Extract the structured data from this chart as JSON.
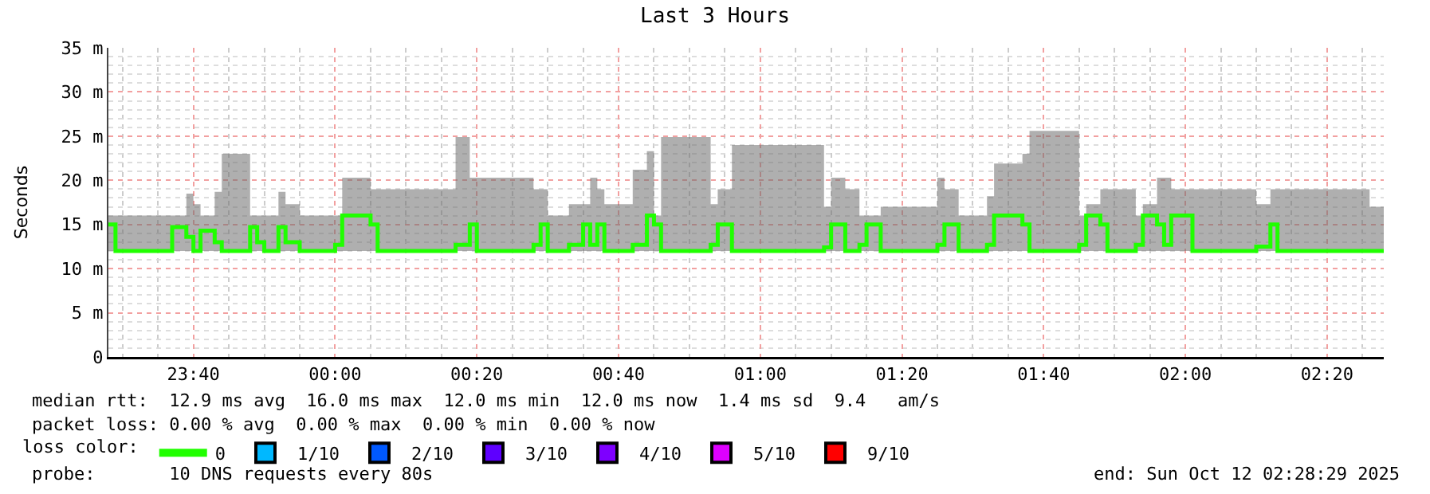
{
  "chart_data": {
    "type": "step",
    "title": "Last 3 Hours",
    "ylabel": "Seconds",
    "legend_title": "loss color:",
    "x": [
      "2025-10-11T23:28",
      "2025-10-11T23:29",
      "2025-10-11T23:37",
      "2025-10-11T23:39",
      "2025-10-11T23:40",
      "2025-10-11T23:41",
      "2025-10-11T23:43",
      "2025-10-11T23:44",
      "2025-10-11T23:48",
      "2025-10-11T23:49",
      "2025-10-11T23:50",
      "2025-10-11T23:52",
      "2025-10-11T23:53",
      "2025-10-11T23:55",
      "2025-10-12T00:00",
      "2025-10-12T00:01",
      "2025-10-12T00:05",
      "2025-10-12T00:06",
      "2025-10-12T00:17",
      "2025-10-12T00:19",
      "2025-10-12T00:20",
      "2025-10-12T00:28",
      "2025-10-12T00:29",
      "2025-10-12T00:30",
      "2025-10-12T00:33",
      "2025-10-12T00:35",
      "2025-10-12T00:36",
      "2025-10-12T00:37",
      "2025-10-12T00:38",
      "2025-10-12T00:42",
      "2025-10-12T00:44",
      "2025-10-12T00:45",
      "2025-10-12T00:46",
      "2025-10-12T00:53",
      "2025-10-12T00:54",
      "2025-10-12T00:56",
      "2025-10-12T01:09",
      "2025-10-12T01:10",
      "2025-10-12T01:12",
      "2025-10-12T01:14",
      "2025-10-12T01:15",
      "2025-10-12T01:17",
      "2025-10-12T01:25",
      "2025-10-12T01:26",
      "2025-10-12T01:28",
      "2025-10-12T01:32",
      "2025-10-12T01:33",
      "2025-10-12T01:37",
      "2025-10-12T01:38",
      "2025-10-12T01:45",
      "2025-10-12T01:46",
      "2025-10-12T01:48",
      "2025-10-12T01:49",
      "2025-10-12T01:53",
      "2025-10-12T01:54",
      "2025-10-12T01:56",
      "2025-10-12T01:57",
      "2025-10-12T01:58",
      "2025-10-12T02:01",
      "2025-10-12T02:10",
      "2025-10-12T02:12",
      "2025-10-12T02:13",
      "2025-10-12T02:26",
      "2025-10-12T02:28"
    ],
    "series": [
      {
        "name": "0",
        "color": "#20ff00",
        "values": [
          15,
          12,
          14.7,
          13.6,
          12,
          14.3,
          13,
          12,
          14.7,
          13,
          12,
          14.7,
          13,
          12,
          12.7,
          16,
          15,
          12,
          12.7,
          15,
          12,
          12.7,
          15,
          12,
          12.7,
          15,
          12.7,
          15,
          12,
          12.7,
          16,
          15,
          12,
          12.7,
          15,
          12,
          12.4,
          15,
          12,
          12.7,
          15,
          12,
          12.7,
          15,
          12,
          12.7,
          16,
          15,
          12,
          12.7,
          16,
          15,
          12,
          12.7,
          16,
          15,
          12.7,
          16,
          12,
          12.5,
          15,
          12,
          12,
          12
        ],
        "lower": [
          12,
          12,
          12,
          12,
          12,
          12,
          12,
          12,
          12,
          12,
          12,
          12,
          12,
          12,
          12,
          12,
          12,
          12,
          12,
          12,
          12,
          12,
          12,
          12,
          12,
          12,
          12,
          12,
          12,
          12,
          12,
          12,
          12,
          12,
          12,
          12,
          12,
          12,
          12,
          12,
          12,
          12,
          12,
          12,
          12,
          12,
          12,
          12,
          12,
          12,
          12,
          12,
          12,
          12,
          12,
          12,
          12,
          12,
          12,
          12,
          12,
          12,
          12,
          12
        ],
        "upper": [
          16,
          16,
          16,
          18.5,
          17.3,
          16,
          18.7,
          23,
          16,
          16,
          16,
          18.7,
          17.3,
          16,
          16,
          20.3,
          19,
          19,
          24.9,
          20.3,
          20.3,
          19,
          19,
          16,
          17.3,
          17.3,
          20.3,
          19,
          17.3,
          21.2,
          23.3,
          16,
          24.9,
          17.3,
          19,
          24,
          17,
          20.3,
          19,
          16,
          16,
          17,
          20.3,
          19,
          16,
          18.2,
          21.9,
          23,
          25.6,
          16,
          17.3,
          19,
          19,
          16,
          17.3,
          20.3,
          20.3,
          19,
          19,
          17.3,
          19,
          19,
          17,
          17
        ]
      },
      {
        "name": "1/10",
        "color": "#00b8ff",
        "values": [
          null,
          null,
          null,
          null,
          null,
          null,
          null,
          null,
          null,
          null,
          null,
          null,
          null,
          null,
          null,
          null,
          null,
          null,
          null,
          null,
          null,
          null,
          null,
          null,
          null,
          null,
          null,
          null,
          null,
          null,
          null,
          null,
          null,
          null,
          null,
          null,
          null,
          null,
          null,
          null,
          null,
          null,
          null,
          null,
          null,
          null,
          null,
          null,
          null,
          null,
          null,
          null,
          null,
          null,
          null,
          null,
          null,
          null,
          null,
          null,
          null,
          null,
          null,
          null
        ]
      },
      {
        "name": "2/10",
        "color": "#0059ff",
        "values": [
          null,
          null,
          null,
          null,
          null,
          null,
          null,
          null,
          null,
          null,
          null,
          null,
          null,
          null,
          null,
          null,
          null,
          null,
          null,
          null,
          null,
          null,
          null,
          null,
          null,
          null,
          null,
          null,
          null,
          null,
          null,
          null,
          null,
          null,
          null,
          null,
          null,
          null,
          null,
          null,
          null,
          null,
          null,
          null,
          null,
          null,
          null,
          null,
          null,
          null,
          null,
          null,
          null,
          null,
          null,
          null,
          null,
          null,
          null,
          null,
          null,
          null,
          null,
          null
        ]
      },
      {
        "name": "3/10",
        "color": "#5e00ff",
        "values": [
          null,
          null,
          null,
          null,
          null,
          null,
          null,
          null,
          null,
          null,
          null,
          null,
          null,
          null,
          null,
          null,
          null,
          null,
          null,
          null,
          null,
          null,
          null,
          null,
          null,
          null,
          null,
          null,
          null,
          null,
          null,
          null,
          null,
          null,
          null,
          null,
          null,
          null,
          null,
          null,
          null,
          null,
          null,
          null,
          null,
          null,
          null,
          null,
          null,
          null,
          null,
          null,
          null,
          null,
          null,
          null,
          null,
          null,
          null,
          null,
          null,
          null,
          null,
          null
        ]
      },
      {
        "name": "4/10",
        "color": "#7e00ff",
        "values": [
          null,
          null,
          null,
          null,
          null,
          null,
          null,
          null,
          null,
          null,
          null,
          null,
          null,
          null,
          null,
          null,
          null,
          null,
          null,
          null,
          null,
          null,
          null,
          null,
          null,
          null,
          null,
          null,
          null,
          null,
          null,
          null,
          null,
          null,
          null,
          null,
          null,
          null,
          null,
          null,
          null,
          null,
          null,
          null,
          null,
          null,
          null,
          null,
          null,
          null,
          null,
          null,
          null,
          null,
          null,
          null,
          null,
          null,
          null,
          null,
          null,
          null,
          null,
          null
        ]
      },
      {
        "name": "5/10",
        "color": "#dd00ff",
        "values": [
          null,
          null,
          null,
          null,
          null,
          null,
          null,
          null,
          null,
          null,
          null,
          null,
          null,
          null,
          null,
          null,
          null,
          null,
          null,
          null,
          null,
          null,
          null,
          null,
          null,
          null,
          null,
          null,
          null,
          null,
          null,
          null,
          null,
          null,
          null,
          null,
          null,
          null,
          null,
          null,
          null,
          null,
          null,
          null,
          null,
          null,
          null,
          null,
          null,
          null,
          null,
          null,
          null,
          null,
          null,
          null,
          null,
          null,
          null,
          null,
          null,
          null,
          null,
          null
        ]
      },
      {
        "name": "9/10",
        "color": "#ff0000",
        "values": [
          null,
          null,
          null,
          null,
          null,
          null,
          null,
          null,
          null,
          null,
          null,
          null,
          null,
          null,
          null,
          null,
          null,
          null,
          null,
          null,
          null,
          null,
          null,
          null,
          null,
          null,
          null,
          null,
          null,
          null,
          null,
          null,
          null,
          null,
          null,
          null,
          null,
          null,
          null,
          null,
          null,
          null,
          null,
          null,
          null,
          null,
          null,
          null,
          null,
          null,
          null,
          null,
          null,
          null,
          null,
          null,
          null,
          null,
          null,
          null,
          null,
          null,
          null,
          null
        ]
      }
    ],
    "xlim": [
      "2025-10-11T23:28",
      "2025-10-12T02:28"
    ],
    "xticks": [
      {
        "value": "2025-10-11T23:40",
        "label": "23:40"
      },
      {
        "value": "2025-10-12T00:00",
        "label": "00:00"
      },
      {
        "value": "2025-10-12T00:20",
        "label": "00:20"
      },
      {
        "value": "2025-10-12T00:40",
        "label": "00:40"
      },
      {
        "value": "2025-10-12T01:00",
        "label": "01:00"
      },
      {
        "value": "2025-10-12T01:20",
        "label": "01:20"
      },
      {
        "value": "2025-10-12T01:40",
        "label": "01:40"
      },
      {
        "value": "2025-10-12T02:00",
        "label": "02:00"
      },
      {
        "value": "2025-10-12T02:20",
        "label": "02:20"
      }
    ],
    "ylim": [
      0,
      35
    ],
    "yticks": [
      0,
      {
        "value": 5,
        "label": "5 m"
      },
      {
        "value": 10,
        "label": "10 m"
      },
      {
        "value": 15,
        "label": "15 m"
      },
      {
        "value": 20,
        "label": "20 m"
      },
      {
        "value": 25,
        "label": "25 m"
      },
      {
        "value": 30,
        "label": "30 m"
      },
      {
        "value": 35,
        "label": "35 m"
      }
    ],
    "grid": true,
    "legend": "bottom",
    "annotations": [
      "median rtt:  12.9 ms avg  16.0 ms max  12.0 ms min  12.0 ms now  1.4 ms sd  9.4   am/s",
      "packet loss: 0.00 % avg  0.00 % max  0.00 % min  0.00 % now",
      "probe:       10 DNS requests every 80s",
      "end: Sun Oct 12 02:28:29 2025"
    ]
  }
}
